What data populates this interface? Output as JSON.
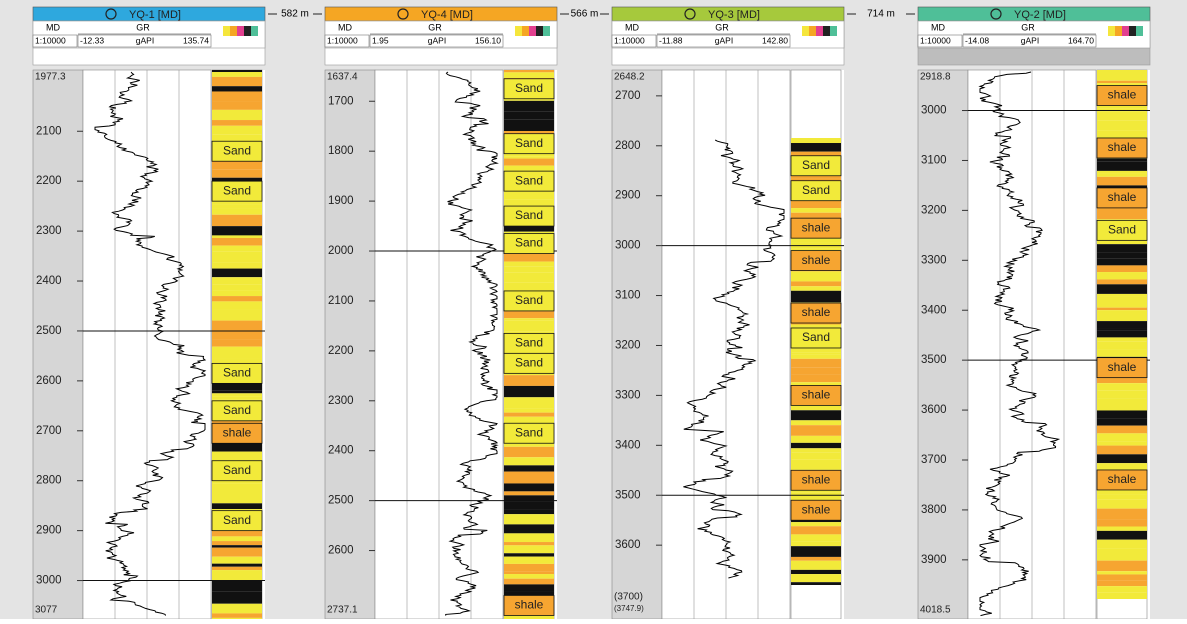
{
  "wells": [
    {
      "title": "YQ-1 [MD]",
      "color": "#2ea8de",
      "md": "MD",
      "curve": "GR",
      "scale": "1:10000",
      "gr_min": "-12.33",
      "unit": "gAPI",
      "gr_max": "135.74",
      "depth_range": [
        1977.3,
        3077
      ],
      "ticks": [
        2100,
        2200,
        2300,
        2400,
        2500,
        2600,
        2700,
        2800,
        2900,
        3000
      ],
      "markers": [
        2500,
        3000
      ],
      "lithology": [
        {
          "label": "Sand",
          "depth": 2140
        },
        {
          "label": "Sand",
          "depth": 2220
        },
        {
          "label": "Sand",
          "depth": 2585
        },
        {
          "label": "Sand",
          "depth": 2660
        },
        {
          "label": "shale",
          "depth": 2705
        },
        {
          "label": "Sand",
          "depth": 2780
        },
        {
          "label": "Sand",
          "depth": 2880
        }
      ],
      "spacing": "582 m"
    },
    {
      "title": "YQ-4 [MD]",
      "color": "#f5a623",
      "md": "MD",
      "curve": "GR",
      "scale": "1:10000",
      "gr_min": "1.95",
      "unit": "gAPI",
      "gr_max": "156.10",
      "depth_range": [
        1637.4,
        2737.1
      ],
      "ticks": [
        1700,
        1800,
        1900,
        2000,
        2100,
        2200,
        2300,
        2400,
        2500,
        2600
      ],
      "markers": [
        2000,
        2500
      ],
      "lithology": [
        {
          "label": "Sand",
          "depth": 1675
        },
        {
          "label": "Sand",
          "depth": 1785
        },
        {
          "label": "Sand",
          "depth": 1860
        },
        {
          "label": "Sand",
          "depth": 1930
        },
        {
          "label": "Sand",
          "depth": 1985
        },
        {
          "label": "Sand",
          "depth": 2100
        },
        {
          "label": "Sand",
          "depth": 2185
        },
        {
          "label": "Sand",
          "depth": 2225
        },
        {
          "label": "Sand",
          "depth": 2365
        },
        {
          "label": "shale",
          "depth": 2710
        }
      ],
      "spacing": "566 m"
    },
    {
      "title": "YQ-3 [MD]",
      "color": "#a6c93c",
      "md": "MD",
      "curve": "GR",
      "scale": "1:10000",
      "gr_min": "-11.88",
      "unit": "gAPI",
      "gr_max": "142.80",
      "depth_range": [
        2648.2,
        3747.9
      ],
      "bottom_labels": [
        "(3700)",
        "(3747.9)"
      ],
      "ticks": [
        2700,
        2800,
        2900,
        3000,
        3100,
        3200,
        3300,
        3400,
        3500,
        3600
      ],
      "markers": [
        3000,
        3500
      ],
      "lithology": [
        {
          "label": "Sand",
          "depth": 2840
        },
        {
          "label": "Sand",
          "depth": 2890
        },
        {
          "label": "shale",
          "depth": 2965
        },
        {
          "label": "shale",
          "depth": 3030
        },
        {
          "label": "shale",
          "depth": 3135
        },
        {
          "label": "Sand",
          "depth": 3185
        },
        {
          "label": "shale",
          "depth": 3300
        },
        {
          "label": "shale",
          "depth": 3470
        },
        {
          "label": "shale",
          "depth": 3530
        }
      ],
      "spacing": "714 m"
    },
    {
      "title": "YQ-2 [MD]",
      "color": "#4fbf98",
      "md": "MD",
      "curve": "GR",
      "scale": "1:10000",
      "gr_min": "-14.08",
      "unit": "gAPI",
      "gr_max": "164.70",
      "depth_range": [
        2918.8,
        4018.5
      ],
      "ticks": [
        3000,
        3100,
        3200,
        3300,
        3400,
        3500,
        3600,
        3700,
        3800,
        3900
      ],
      "markers": [
        3000,
        3500
      ],
      "lithology": [
        {
          "label": "shale",
          "depth": 2970
        },
        {
          "label": "shale",
          "depth": 3075
        },
        {
          "label": "shale",
          "depth": 3175
        },
        {
          "label": "Sand",
          "depth": 3240
        },
        {
          "label": "shale",
          "depth": 3515
        },
        {
          "label": "shale",
          "depth": 3740
        }
      ]
    }
  ]
}
